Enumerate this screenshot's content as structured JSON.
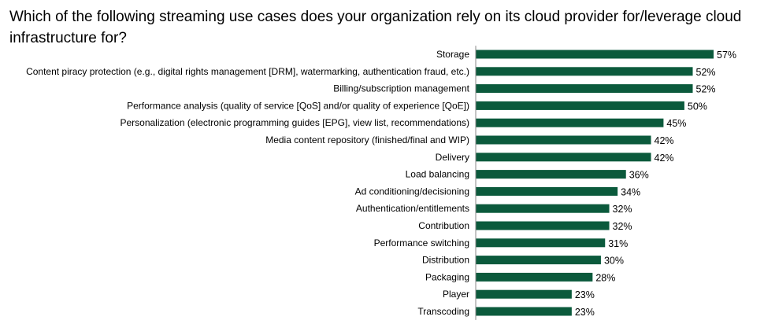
{
  "chart_data": {
    "type": "bar",
    "orientation": "horizontal",
    "title": "Which of the following streaming use cases does your organization rely on its cloud provider for/leverage cloud infrastructure for?",
    "categories": [
      "Storage",
      "Content piracy protection (e.g., digital rights management [DRM], watermarking, authentication fraud, etc.)",
      "Billing/subscription management",
      "Performance analysis (quality of service [QoS] and/or quality of experience [QoE])",
      "Personalization (electronic programming guides [EPG], view list, recommendations)",
      "Media content repository (finished/final and WIP)",
      "Delivery",
      "Load balancing",
      "Ad conditioning/decisioning",
      "Authentication/entitlements",
      "Contribution",
      "Performance switching",
      "Distribution",
      "Packaging",
      "Player",
      "Transcoding"
    ],
    "values": [
      57,
      52,
      52,
      50,
      45,
      42,
      42,
      36,
      34,
      32,
      32,
      31,
      30,
      28,
      23,
      23
    ],
    "value_labels": [
      "57%",
      "52%",
      "52%",
      "50%",
      "45%",
      "42%",
      "42%",
      "36%",
      "34%",
      "32%",
      "32%",
      "31%",
      "30%",
      "28%",
      "23%",
      "23%"
    ],
    "unit": "%",
    "xlim": [
      0,
      60
    ],
    "grid": false,
    "bar_color": "#0b5a3c"
  }
}
